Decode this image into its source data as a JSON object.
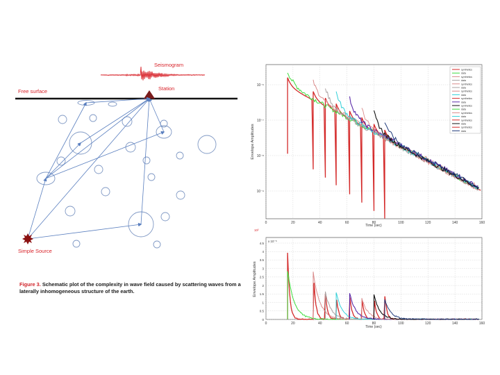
{
  "schematic": {
    "seismogram_label": "Seismogram",
    "station_label": "Station",
    "free_surface_label": "Free surface",
    "source_label": "Simple Source",
    "caption_figure": "Figure 3.",
    "caption_text": " Schematic plot of the complexity in wave field caused by scattering waves from a laterally inhomogeneous structure of the earth."
  },
  "colors": {
    "surface": "#111111",
    "ray": "#5a7fbf",
    "seismogram": "#d8232a",
    "synthetics_red": "#d42a2a",
    "synthetics_pink": "#d98a8a",
    "data_green": "#3ddc3d",
    "data_gray": "#a8a0a0",
    "data_cyan": "#30d0d8",
    "data_purple": "#5a2aa8",
    "data_black": "#111111",
    "data_navy": "#1f3a7a"
  },
  "chart_data": [
    {
      "type": "line",
      "title": "",
      "xlabel": "Time (sec)",
      "ylabel": "Envelope Amplitudes",
      "xlim": [
        0,
        160
      ],
      "y_scale": "log",
      "xticks": [
        "0",
        "20",
        "40",
        "60",
        "80",
        "100",
        "120",
        "140",
        "160"
      ],
      "yticks": [
        "10⁻⁶",
        "10⁻⁷",
        "10⁻⁸",
        "10⁻⁹"
      ],
      "grid": true,
      "legend_position": "top-right",
      "legend_entries": [
        "synthetics",
        "data",
        "synthetics",
        "data",
        "synthetics",
        "data",
        "synthetics",
        "data",
        "synthetics",
        "data",
        "synthetics",
        "data",
        "synthetics",
        "data",
        "synthetics",
        "data",
        "synthetics",
        "data"
      ],
      "arrivals": [
        16,
        35,
        44,
        52,
        62,
        71,
        80,
        88
      ]
    },
    {
      "type": "line",
      "title": "",
      "xlabel": "Time (sec)",
      "ylabel": "Envelope Amplitudes",
      "exponent_label": "x 10⁻⁶",
      "corner_label": "10²",
      "xlim": [
        0,
        160
      ],
      "ylim": [
        0,
        4.5
      ],
      "xticks": [
        "0",
        "20",
        "40",
        "60",
        "80",
        "100",
        "120",
        "140",
        "160"
      ],
      "yticks": [
        "0",
        "0.5",
        "1",
        "1.5",
        "2",
        "2.5",
        "3",
        "3.5",
        "4",
        "4.5"
      ],
      "grid": true,
      "arrivals": [
        16,
        35,
        44,
        52,
        62,
        71,
        80,
        88
      ],
      "peaks": [
        4.1,
        3.3,
        1.6,
        1.6,
        1.55,
        1.4,
        1.45,
        1.5
      ]
    }
  ]
}
